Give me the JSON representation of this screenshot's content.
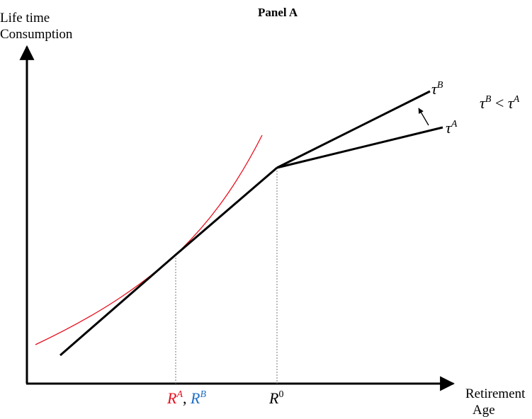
{
  "title": "Panel A",
  "y_axis": {
    "line1": "Life time",
    "line2": "Consumption"
  },
  "x_axis": {
    "line1": "Retirement",
    "line2": "Age"
  },
  "x_ticks": {
    "ra": {
      "text": "R",
      "sup": "A",
      "color": "#e8101e"
    },
    "sep": ", ",
    "rb": {
      "text": "R",
      "sup": "B",
      "color": "#1f6fc6"
    },
    "r0": {
      "text": "R",
      "sup": "0"
    }
  },
  "line_labels": {
    "tau_b": {
      "text": "τ",
      "sup": "B"
    },
    "tau_a": {
      "text": "τ",
      "sup": "A"
    }
  },
  "inequality": {
    "lhs": "τ",
    "lhs_sup": "B",
    "op": " < ",
    "rhs": "τ",
    "rhs_sup": "A"
  },
  "colors": {
    "budget_line": "#000000",
    "indifference_curve": "#e8101e",
    "guide": "#7a7a7a"
  }
}
